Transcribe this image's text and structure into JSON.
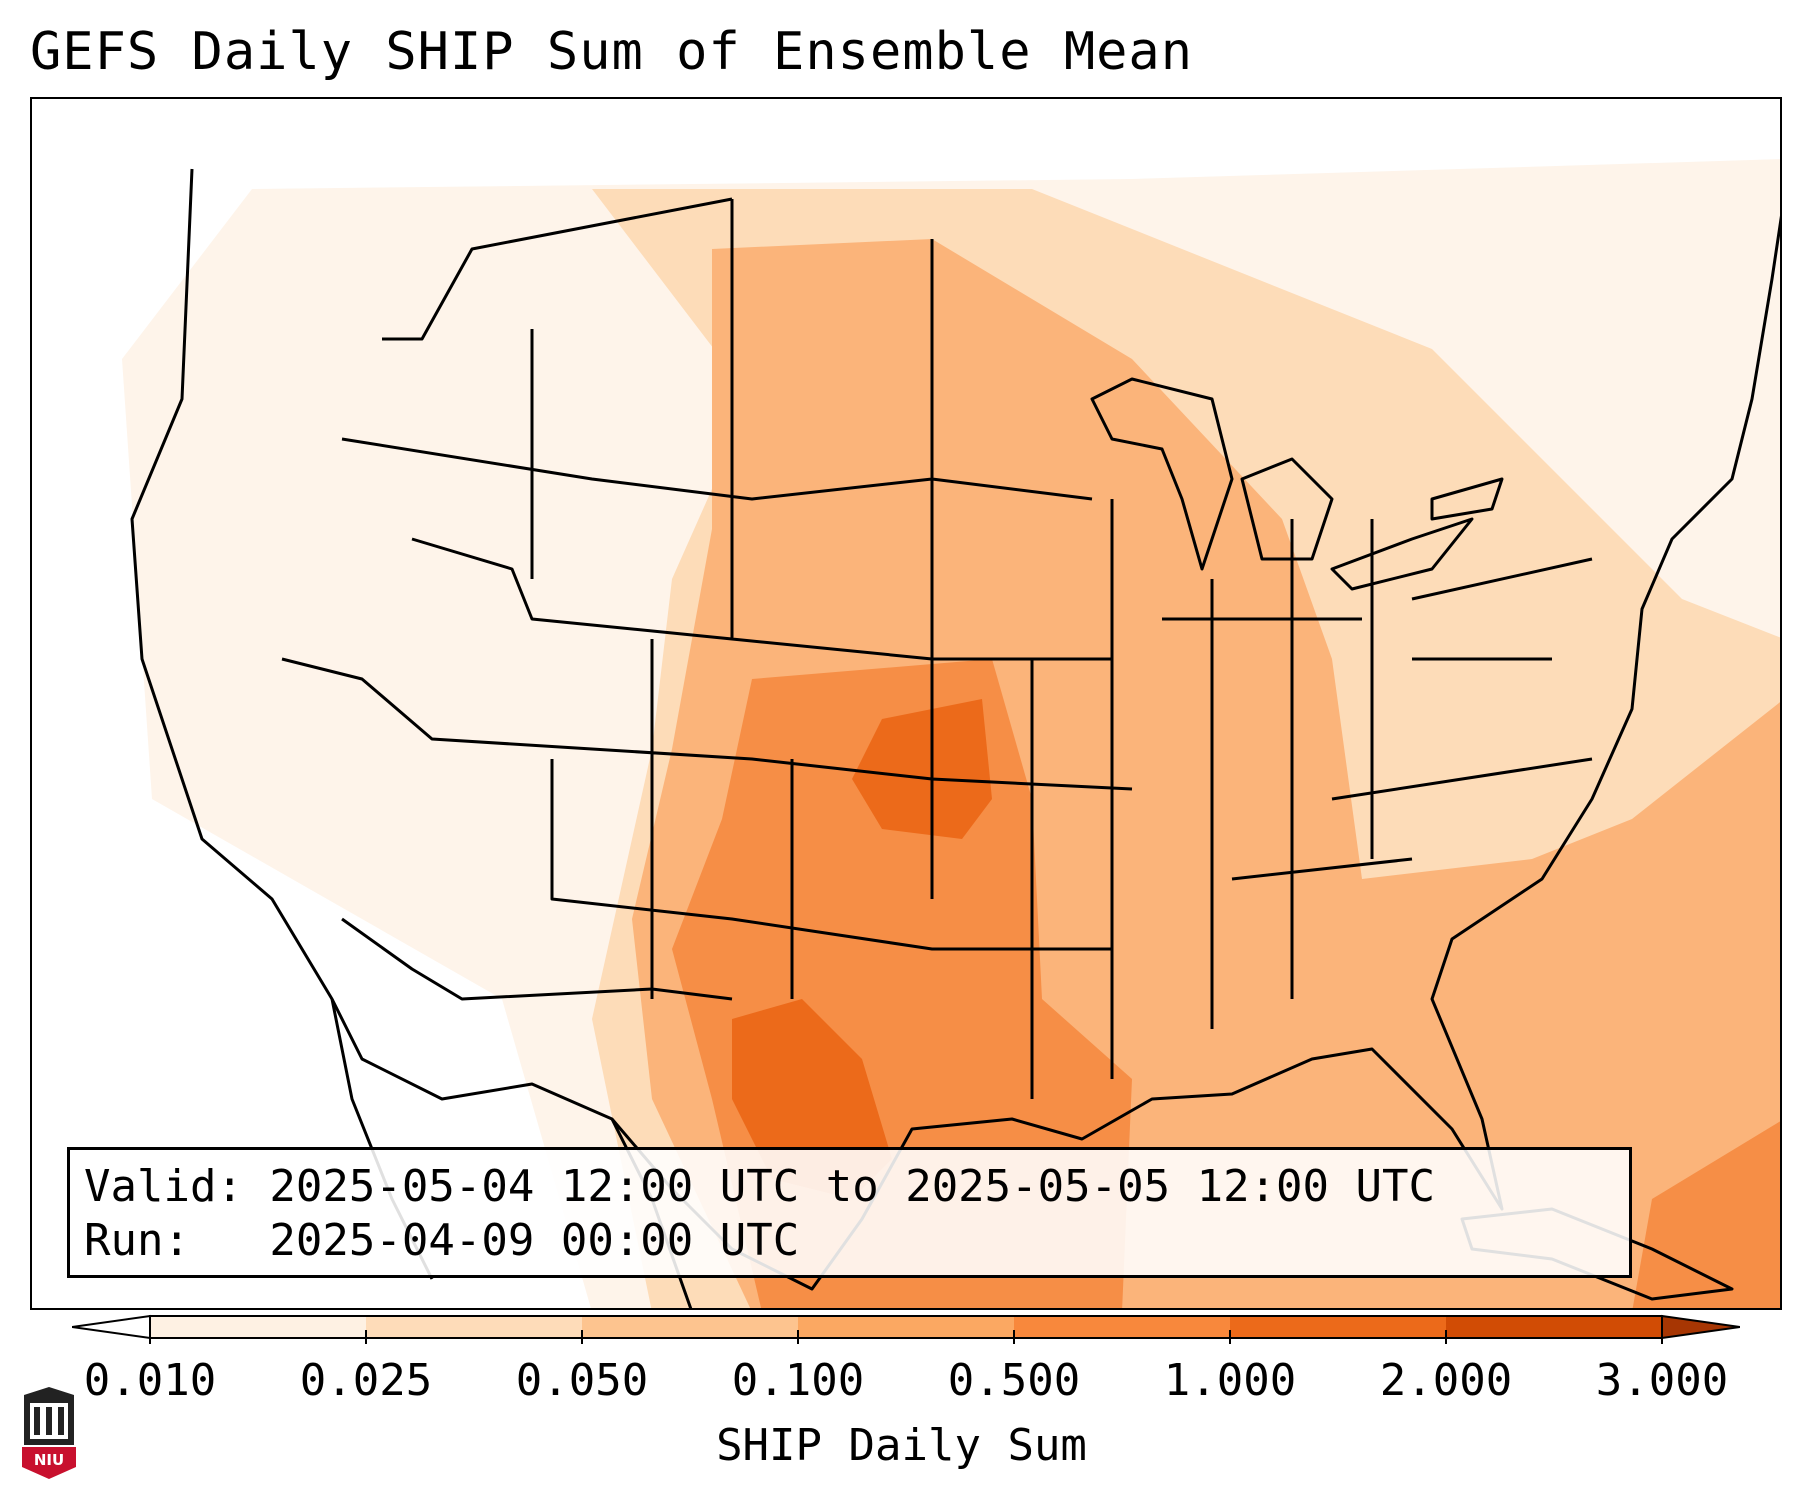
{
  "title": "GEFS Daily SHIP Sum of Ensemble Mean",
  "info": {
    "valid_line": "Valid: 2025-05-04 12:00 UTC to 2025-05-05 12:00 UTC",
    "run_line": "Run:   2025-04-09 00:00 UTC"
  },
  "colorbar": {
    "title": "SHIP Daily Sum",
    "ticks": [
      "0.010",
      "0.025",
      "0.050",
      "0.100",
      "0.500",
      "1.000",
      "2.000",
      "3.000"
    ],
    "colors": [
      "#fef1e3",
      "#fedcb9",
      "#fdc48f",
      "#fba862",
      "#f8883c",
      "#ec6a1a",
      "#d14c05",
      "#a73603"
    ],
    "extend": "both"
  },
  "map": {
    "region": "Continental United States",
    "boundaries": "state and coastline outlines",
    "fill_colors": {
      "very_light": "#fef3e7",
      "light": "#fddcb8",
      "medium": "#fbb47a",
      "strong": "#f68e46",
      "max": "#ec6a1a"
    }
  },
  "logo": {
    "text": "NIU",
    "color": "#c8102e"
  }
}
